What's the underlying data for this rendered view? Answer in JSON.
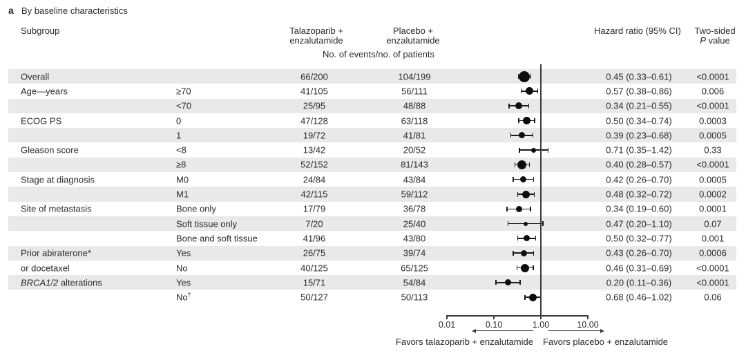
{
  "panel": {
    "label": "a",
    "title": "By baseline characteristics"
  },
  "columns": {
    "subgroup": "Subgroup",
    "arm1_line1": "Talazoparib +",
    "arm1_line2": "enzalutamide",
    "arm2_line1": "Placebo +",
    "arm2_line2": "enzalutamide",
    "events_header": "No. of events/no. of patients",
    "hr_header": "Hazard ratio (95% CI)",
    "p_header_line1": "Two-sided",
    "p_header_italic": "P",
    "p_header_rest": " value"
  },
  "chart_data": {
    "type": "forest",
    "x_scale": "log10",
    "x_axis_range": [
      0.01,
      10.0
    ],
    "reference_line": 1.0,
    "x_ticks": [
      {
        "label": "0.01",
        "value": 0.01
      },
      {
        "label": "0.10",
        "value": 0.1
      },
      {
        "label": "1.00",
        "value": 1.0
      },
      {
        "label": "10.00",
        "value": 10.0
      }
    ],
    "favors_left": "Favors talazoparib + enzalutamide",
    "favors_right": "Favors placebo + enzalutamide",
    "rows": [
      {
        "group": "Overall",
        "group_italic_prefix": "",
        "sub": "",
        "sub_sup": "",
        "arm1": "66/200",
        "arm2": "104/199",
        "hr": 0.45,
        "lo": 0.33,
        "hi": 0.61,
        "hr_text": "0.45 (0.33–0.61)",
        "p": "<0.0001"
      },
      {
        "group": "Age—years",
        "group_italic_prefix": "",
        "sub": "≥70",
        "sub_sup": "",
        "arm1": "41/105",
        "arm2": "56/111",
        "hr": 0.57,
        "lo": 0.38,
        "hi": 0.86,
        "hr_text": "0.57 (0.38–0.86)",
        "p": "0.006"
      },
      {
        "group": "",
        "group_italic_prefix": "",
        "sub": "<70",
        "sub_sup": "",
        "arm1": "25/95",
        "arm2": "48/88",
        "hr": 0.34,
        "lo": 0.21,
        "hi": 0.55,
        "hr_text": "0.34 (0.21–0.55)",
        "p": "<0.0001"
      },
      {
        "group": "ECOG PS",
        "group_italic_prefix": "",
        "sub": "0",
        "sub_sup": "",
        "arm1": "47/128",
        "arm2": "63/118",
        "hr": 0.5,
        "lo": 0.34,
        "hi": 0.74,
        "hr_text": "0.50 (0.34–0.74)",
        "p": "0.0003"
      },
      {
        "group": "",
        "group_italic_prefix": "",
        "sub": "1",
        "sub_sup": "",
        "arm1": "19/72",
        "arm2": "41/81",
        "hr": 0.39,
        "lo": 0.23,
        "hi": 0.68,
        "hr_text": "0.39 (0.23–0.68)",
        "p": "0.0005"
      },
      {
        "group": "Gleason score",
        "group_italic_prefix": "",
        "sub": "<8",
        "sub_sup": "",
        "arm1": "13/42",
        "arm2": "20/52",
        "hr": 0.71,
        "lo": 0.35,
        "hi": 1.42,
        "hr_text": "0.71 (0.35–1.42)",
        "p": "0.33"
      },
      {
        "group": "",
        "group_italic_prefix": "",
        "sub": "≥8",
        "sub_sup": "",
        "arm1": "52/152",
        "arm2": "81/143",
        "hr": 0.4,
        "lo": 0.28,
        "hi": 0.57,
        "hr_text": "0.40 (0.28–0.57)",
        "p": "<0.0001"
      },
      {
        "group": "Stage at diagnosis",
        "group_italic_prefix": "",
        "sub": "M0",
        "sub_sup": "",
        "arm1": "24/84",
        "arm2": "43/84",
        "hr": 0.42,
        "lo": 0.26,
        "hi": 0.7,
        "hr_text": "0.42 (0.26–0.70)",
        "p": "0.0005"
      },
      {
        "group": "",
        "group_italic_prefix": "",
        "sub": "M1",
        "sub_sup": "",
        "arm1": "42/115",
        "arm2": "59/112",
        "hr": 0.48,
        "lo": 0.32,
        "hi": 0.72,
        "hr_text": "0.48 (0.32–0.72)",
        "p": "0.0002"
      },
      {
        "group": "Site of metastasis",
        "group_italic_prefix": "",
        "sub": "Bone only",
        "sub_sup": "",
        "arm1": "17/79",
        "arm2": "36/78",
        "hr": 0.34,
        "lo": 0.19,
        "hi": 0.6,
        "hr_text": "0.34 (0.19–0.60)",
        "p": "0.0001"
      },
      {
        "group": "",
        "group_italic_prefix": "",
        "sub": "Soft tissue only",
        "sub_sup": "",
        "arm1": "7/20",
        "arm2": "25/40",
        "hr": 0.47,
        "lo": 0.2,
        "hi": 1.1,
        "hr_text": "0.47 (0.20–1.10)",
        "p": "0.07"
      },
      {
        "group": "",
        "group_italic_prefix": "",
        "sub": "Bone and soft tissue",
        "sub_sup": "",
        "arm1": "41/96",
        "arm2": "43/80",
        "hr": 0.5,
        "lo": 0.32,
        "hi": 0.77,
        "hr_text": "0.50 (0.32–0.77)",
        "p": "0.001"
      },
      {
        "group": "Prior abiraterone*",
        "group_italic_prefix": "",
        "sub": "Yes",
        "sub_sup": "",
        "arm1": "26/75",
        "arm2": "39/74",
        "hr": 0.43,
        "lo": 0.26,
        "hi": 0.7,
        "hr_text": "0.43 (0.26–0.70)",
        "p": "0.0006"
      },
      {
        "group": "or docetaxel",
        "group_italic_prefix": "",
        "sub": "No",
        "sub_sup": "",
        "arm1": "40/125",
        "arm2": "65/125",
        "hr": 0.46,
        "lo": 0.31,
        "hi": 0.69,
        "hr_text": "0.46 (0.31–0.69)",
        "p": "<0.0001"
      },
      {
        "group": " alterations",
        "group_italic_prefix": "BRCA1/2",
        "sub": "Yes",
        "sub_sup": "",
        "arm1": "15/71",
        "arm2": "54/84",
        "hr": 0.2,
        "lo": 0.11,
        "hi": 0.36,
        "hr_text": "0.20 (0.11–0.36)",
        "p": "<0.0001"
      },
      {
        "group": "",
        "group_italic_prefix": "",
        "sub": "No",
        "sub_sup": "†",
        "arm1": "50/127",
        "arm2": "50/113",
        "hr": 0.68,
        "lo": 0.46,
        "hi": 1.02,
        "hr_text": "0.68 (0.46–1.02)",
        "p": "0.06"
      }
    ]
  }
}
